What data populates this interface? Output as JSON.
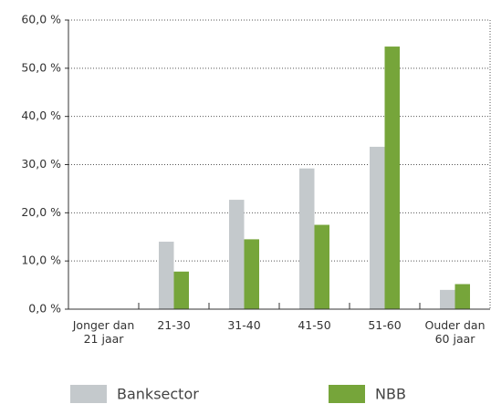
{
  "chart_data": {
    "type": "bar",
    "categories": [
      "Jonger dan 21 jaar",
      "21-30",
      "31-40",
      "41-50",
      "51-60",
      "Ouder dan 60 jaar"
    ],
    "series": [
      {
        "name": "Banksector",
        "color": "#c4c9cc",
        "values": [
          0,
          14,
          22.7,
          29.2,
          33.7,
          4
        ]
      },
      {
        "name": "NBB",
        "color": "#76a53a",
        "values": [
          0,
          7.8,
          14.5,
          17.5,
          54.5,
          5.2
        ]
      }
    ],
    "ylim": [
      0,
      60
    ],
    "yticks": [
      {
        "value": 0,
        "label": "0,0 %"
      },
      {
        "value": 10,
        "label": "10,0 %"
      },
      {
        "value": 20,
        "label": "20,0 %"
      },
      {
        "value": 30,
        "label": "30,0 %"
      },
      {
        "value": 40,
        "label": "40,0 %"
      },
      {
        "value": 50,
        "label": "50,0 %"
      },
      {
        "value": 60,
        "label": "60,0 %"
      }
    ],
    "grid": true
  }
}
